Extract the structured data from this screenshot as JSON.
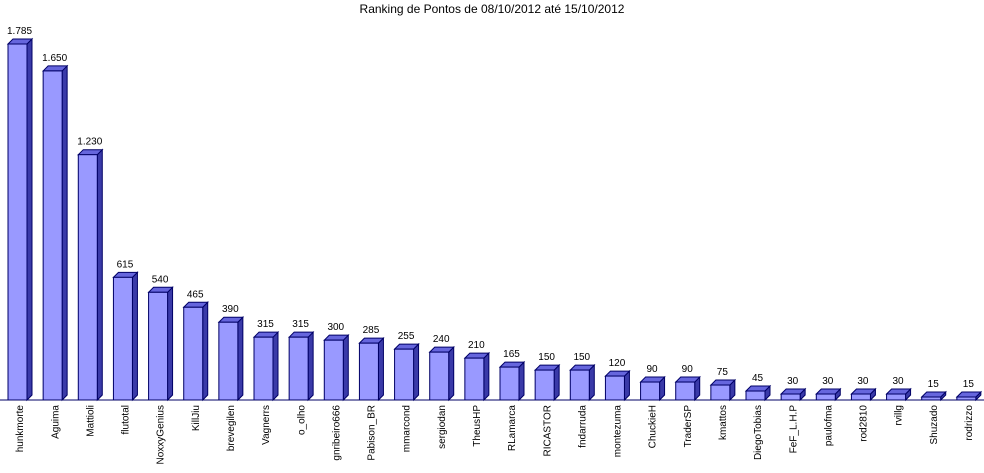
{
  "chart_data": {
    "type": "bar3d",
    "title": "Ranking de Pontos de 08/10/2012 até 15/10/2012",
    "categories": [
      "hunkmorte",
      "Aguima",
      "Mattioli",
      "flutotal",
      "NoxxyGenius",
      "KillJiu",
      "brevegilen",
      "Vagnerrs",
      "o_olho",
      "gnribeiro666",
      "Pabison_BR",
      "mmarcond",
      "sergiodan",
      "TheusHP",
      "RLamarca",
      "RICASTOR",
      "fndarruda",
      "montezuma",
      "ChuckieH",
      "TraderSP",
      "kmattos",
      "DiegoTobias",
      "FeF_L.H.P",
      "paulofma",
      "rod2810",
      "rvillg",
      "Shuzado",
      "rodrizzo"
    ],
    "values": [
      1785,
      1650,
      1230,
      615,
      540,
      465,
      390,
      315,
      315,
      300,
      285,
      255,
      240,
      210,
      165,
      150,
      150,
      120,
      90,
      90,
      75,
      45,
      30,
      30,
      30,
      30,
      15,
      15
    ],
    "value_labels": [
      "1.785",
      "1.650",
      "1.230",
      "615",
      "540",
      "465",
      "390",
      "315",
      "315",
      "300",
      "285",
      "255",
      "240",
      "210",
      "165",
      "150",
      "150",
      "120",
      "90",
      "90",
      "75",
      "45",
      "30",
      "30",
      "30",
      "30",
      "15",
      "15"
    ],
    "color": "#9999ff"
  }
}
